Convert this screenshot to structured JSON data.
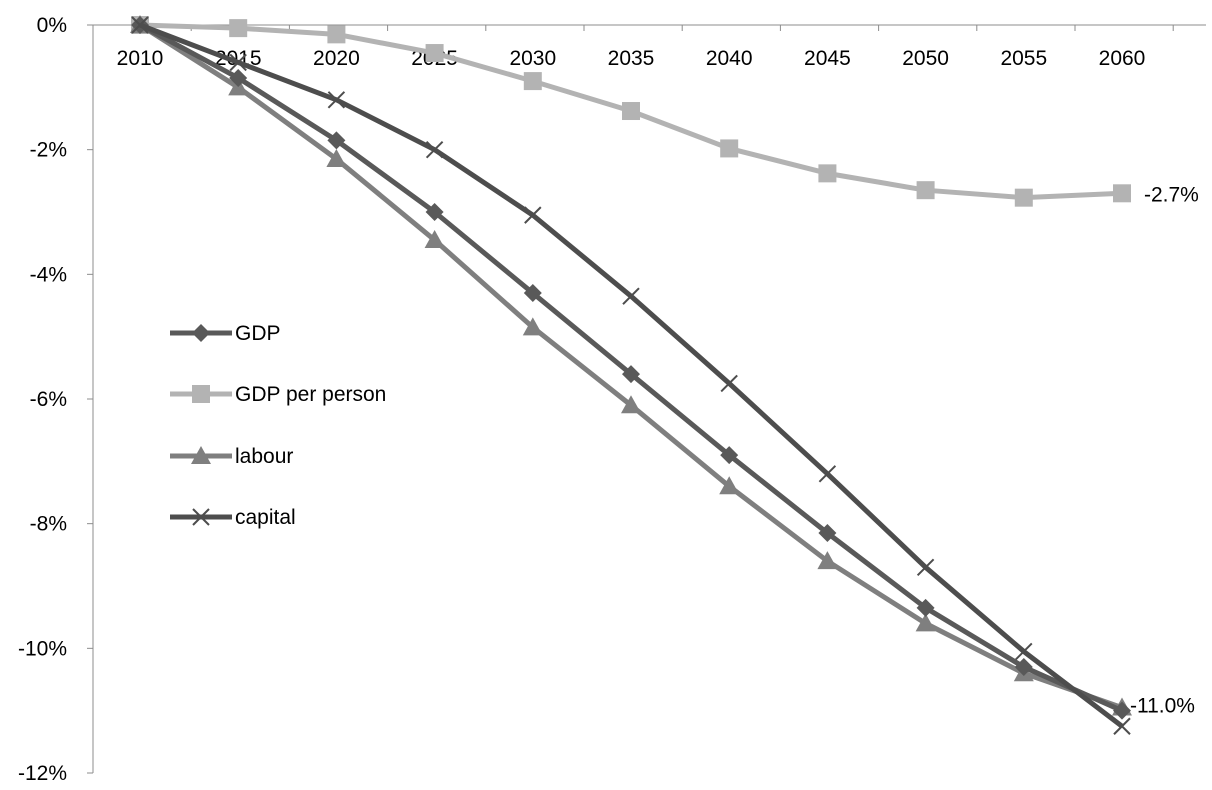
{
  "chart_data": {
    "type": "line",
    "title": "",
    "xlabel": "",
    "ylabel": "",
    "x": [
      "2010",
      "2015",
      "2020",
      "2025",
      "2030",
      "2035",
      "2040",
      "2045",
      "2050",
      "2055",
      "2060"
    ],
    "ylim": [
      -12,
      0
    ],
    "y_ticks": [
      0,
      -2,
      -4,
      -6,
      -8,
      -10,
      -12
    ],
    "y_tick_labels": [
      "0%",
      "-2%",
      "-4%",
      "-6%",
      "-8%",
      "-10%",
      "-12%"
    ],
    "y_unit": "%",
    "grid": false,
    "legend_position": "left-center",
    "series": [
      {
        "name": "GDP",
        "color": "#595959",
        "marker": "diamond",
        "values": [
          0,
          -0.85,
          -1.85,
          -3.0,
          -4.3,
          -5.6,
          -6.9,
          -8.15,
          -9.35,
          -10.3,
          -11.0
        ]
      },
      {
        "name": "GDP per person",
        "color": "#b3b3b3",
        "marker": "square",
        "values": [
          0,
          -0.05,
          -0.15,
          -0.45,
          -0.9,
          -1.38,
          -1.98,
          -2.38,
          -2.65,
          -2.77,
          -2.7
        ]
      },
      {
        "name": "labour",
        "color": "#7f7f7f",
        "marker": "triangle",
        "values": [
          0,
          -1.0,
          -2.15,
          -3.45,
          -4.85,
          -6.1,
          -7.4,
          -8.6,
          -9.6,
          -10.4,
          -10.95
        ]
      },
      {
        "name": "capital",
        "color": "#4d4d4d",
        "marker": "x",
        "values": [
          0,
          -0.6,
          -1.2,
          -2.0,
          -3.05,
          -4.35,
          -5.75,
          -7.2,
          -8.7,
          -10.05,
          -11.25
        ]
      }
    ],
    "annotations": [
      {
        "text": "-2.7%",
        "series": "GDP per person",
        "x": "2060"
      },
      {
        "text": "-11.0%",
        "series": "GDP",
        "x": "2060"
      }
    ]
  }
}
